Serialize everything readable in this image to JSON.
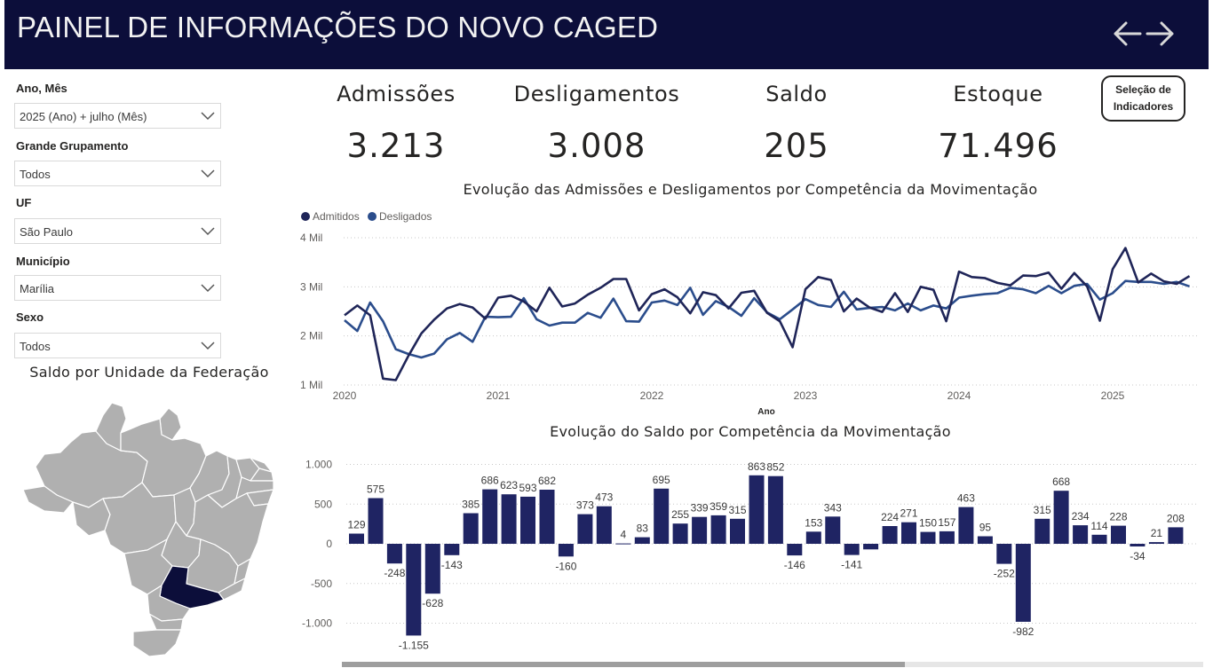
{
  "header": {
    "title": "PAINEL DE INFORMAÇÕES DO NOVO CAGED"
  },
  "nav": {
    "back_icon": "arrow-left-icon",
    "forward_icon": "arrow-right-icon"
  },
  "filters": [
    {
      "label": "Ano, Mês",
      "value": "2025 (Ano) + julho (Mês)"
    },
    {
      "label": "Grande Grupamento",
      "value": "Todos"
    },
    {
      "label": "UF",
      "value": "São Paulo"
    },
    {
      "label": "Município",
      "value": "Marília"
    },
    {
      "label": "Sexo",
      "value": "Todos"
    }
  ],
  "kpis": [
    {
      "label": "Admissões",
      "value": "3.213"
    },
    {
      "label": "Desligamentos",
      "value": "3.008"
    },
    {
      "label": "Saldo",
      "value": "205"
    },
    {
      "label": "Estoque",
      "value": "71.496"
    }
  ],
  "indicator_button": {
    "line1": "Seleção de",
    "line2": "Indicadores"
  },
  "map": {
    "title": "Saldo por Unidade da Federação",
    "highlight_state": "São Paulo",
    "base_color": "#b0b0b0",
    "highlight_color": "#0c0e3a"
  },
  "colors": {
    "header_bg": "#0c0e3a",
    "admitidos": "#1f2558",
    "desligados": "#2b4d8c",
    "bar": "#1f2463"
  },
  "chart_data": [
    {
      "type": "line",
      "title": "Evolução das Admissões e Desligamentos por Competência da Movimentação",
      "xlabel": "Ano",
      "ylabel": "",
      "x_ticks": [
        "2020",
        "2021",
        "2022",
        "2023",
        "2024",
        "2025"
      ],
      "y_ticks": [
        "1 Mil",
        "2 Mil",
        "3 Mil",
        "4 Mil"
      ],
      "ylim": [
        1000,
        4000
      ],
      "legend_position": "top-left",
      "grid": true,
      "x_start": "2020-01",
      "series": [
        {
          "name": "Admitidos",
          "values": [
            2420,
            2620,
            2420,
            1130,
            1100,
            1600,
            2050,
            2330,
            2560,
            2650,
            2580,
            2350,
            2780,
            2820,
            2700,
            2500,
            2980,
            2600,
            2660,
            2840,
            2980,
            3160,
            3160,
            2520,
            2850,
            2950,
            2790,
            2460,
            2890,
            2830,
            2560,
            2880,
            2920,
            2470,
            2300,
            1770,
            2950,
            3200,
            3140,
            2500,
            2760,
            2580,
            2490,
            2870,
            2490,
            3000,
            2940,
            2300,
            3310,
            3200,
            3180,
            3080,
            3030,
            3230,
            3220,
            3290,
            2960,
            3280,
            3010,
            2310,
            3360,
            3790,
            3090,
            3270,
            3110,
            3060,
            3220
          ]
        },
        {
          "name": "Desligados",
          "values": [
            2320,
            2100,
            2680,
            2300,
            1730,
            1630,
            1560,
            1640,
            1930,
            2060,
            1880,
            2390,
            2380,
            2390,
            2770,
            2340,
            2210,
            2270,
            2270,
            2470,
            2370,
            2760,
            2300,
            2290,
            2680,
            2720,
            2630,
            2980,
            2430,
            2710,
            2590,
            2410,
            2770,
            2480,
            2340,
            2540,
            2750,
            2630,
            2590,
            2900,
            2540,
            2570,
            2590,
            2520,
            2660,
            2520,
            2620,
            2560,
            2780,
            2820,
            2850,
            2870,
            2980,
            2950,
            2870,
            3020,
            2870,
            3020,
            3060,
            2740,
            2870,
            3120,
            3100,
            3100,
            3060,
            3100,
            3010
          ]
        }
      ]
    },
    {
      "type": "bar",
      "title": "Evolução do Saldo por Competência da Movimentação",
      "xlabel": "",
      "ylabel": "",
      "y_ticks": [
        "-1.000",
        "-500",
        "0",
        "500",
        "1.000"
      ],
      "ylim": [
        -1000,
        1000
      ],
      "grid": true,
      "values": [
        129,
        575,
        -248,
        -1155,
        -628,
        -143,
        385,
        686,
        623,
        593,
        682,
        -160,
        373,
        473,
        4,
        83,
        695,
        255,
        339,
        359,
        315,
        863,
        852,
        -146,
        153,
        343,
        -141,
        -70,
        224,
        271,
        150,
        157,
        463,
        95,
        -252,
        -982,
        315,
        668,
        234,
        114,
        228,
        -34,
        21,
        208
      ],
      "labels": [
        "129",
        "575",
        "-248",
        "-1.155",
        "-628",
        "-143",
        "385",
        "686",
        "623",
        "593",
        "682",
        "-160",
        "373",
        "473",
        "4",
        "83",
        "695",
        "255",
        "339",
        "359",
        "315",
        "863",
        "852",
        "-146",
        "153",
        "343",
        "-141",
        "",
        "224",
        "271",
        "150",
        "157",
        "463",
        "95",
        "-252",
        "-982",
        "315",
        "668",
        "234",
        "114",
        "228",
        "-34",
        "21",
        "208"
      ]
    }
  ]
}
